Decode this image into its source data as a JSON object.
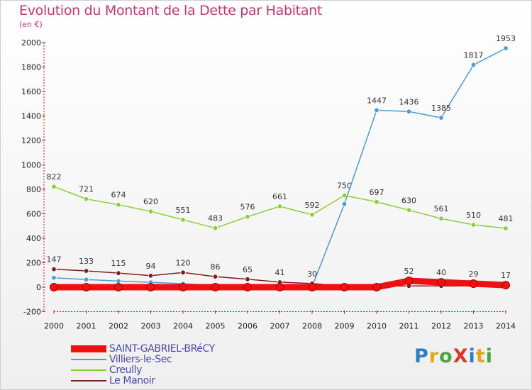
{
  "title": "Evolution du Montant de la Dette par Habitant",
  "subtitle": "(en €)",
  "logo": {
    "text": "ProXiti",
    "colors": [
      "#2a7fc1",
      "#e5a51b",
      "#4aa63a",
      "#d8382b",
      "#2a7fc1",
      "#e5a51b",
      "#4aa63a"
    ]
  },
  "chart_data": {
    "type": "line",
    "x": [
      "2000",
      "2001",
      "2002",
      "2003",
      "2004",
      "2005",
      "2006",
      "2007",
      "2008",
      "2009",
      "2010",
      "2011",
      "2012",
      "2013",
      "2014"
    ],
    "ylim": [
      -200,
      2000
    ],
    "yticks": [
      -200,
      0,
      200,
      400,
      600,
      800,
      1000,
      1200,
      1400,
      1600,
      1800,
      2000
    ],
    "grid": false,
    "legend": "bottom-left",
    "series": [
      {
        "name": "SAINT-GABRIEL-BRéCY",
        "color": "#ee1111",
        "values": [
          0,
          0,
          0,
          0,
          0,
          0,
          0,
          0,
          0,
          0,
          0,
          52,
          40,
          29,
          17
        ],
        "labels": [
          "",
          "",
          "",
          "",
          "",
          "",
          "",
          "",
          "",
          "",
          "",
          "52",
          "40",
          "29",
          "17"
        ]
      },
      {
        "name": "Villiers-le-Sec",
        "color": "#4f9ad4",
        "values": [
          77,
          62,
          50,
          40,
          28,
          15,
          7,
          4,
          5,
          680,
          1447,
          1436,
          1385,
          1817,
          1953
        ],
        "labels": [
          "",
          "",
          "",
          "",
          "",
          "",
          "",
          "",
          "",
          "",
          "1447",
          "1436",
          "1385",
          "1817",
          "1953"
        ]
      },
      {
        "name": "Creully",
        "color": "#8ccd3c",
        "values": [
          822,
          721,
          674,
          620,
          551,
          483,
          576,
          661,
          592,
          750,
          697,
          630,
          561,
          510,
          481
        ],
        "labels": [
          "822",
          "721",
          "674",
          "620",
          "551",
          "483",
          "576",
          "661",
          "592",
          "750",
          "697",
          "630",
          "561",
          "510",
          "481"
        ]
      },
      {
        "name": "Le Manoir",
        "color": "#7a2020",
        "values": [
          147,
          133,
          115,
          94,
          120,
          86,
          65,
          41,
          30,
          9,
          9,
          10,
          10,
          10,
          10
        ],
        "labels": [
          "147",
          "133",
          "115",
          "94",
          "120",
          "86",
          "65",
          "41",
          "30",
          "",
          "",
          "",
          "",
          "",
          ""
        ]
      }
    ]
  }
}
